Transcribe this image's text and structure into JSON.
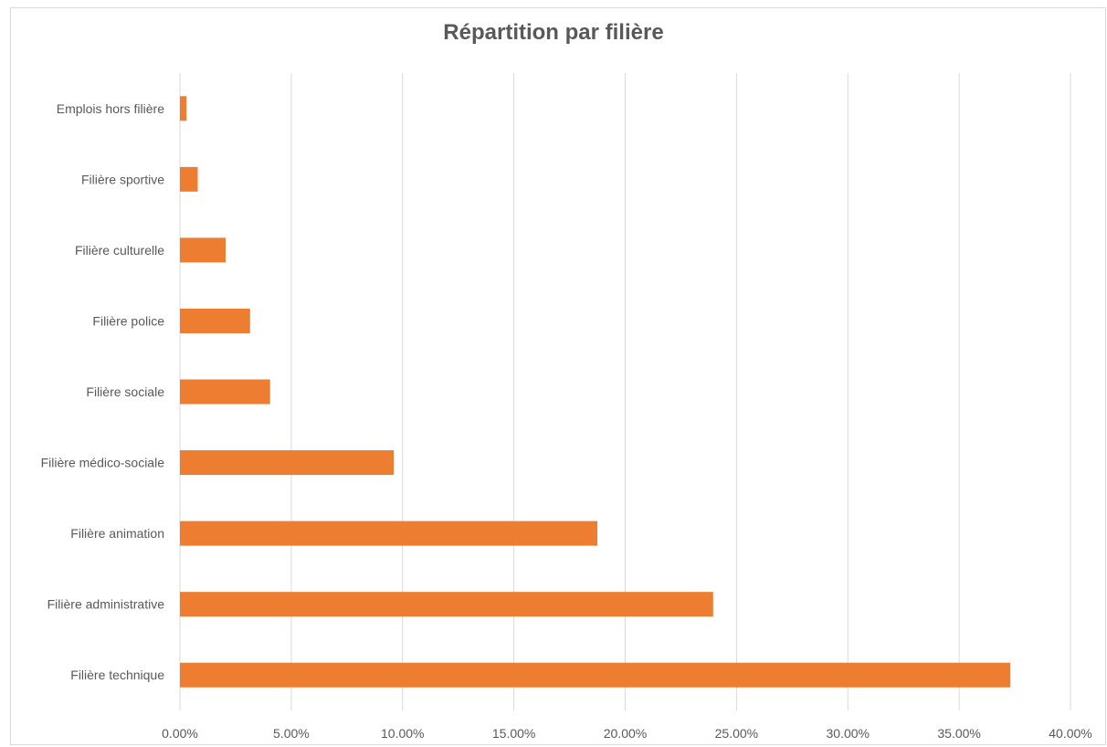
{
  "chart_data": {
    "type": "bar",
    "orientation": "horizontal",
    "title": "Répartition par filière",
    "categories": [
      "Emplois hors filière",
      "Filière sportive",
      "Filière culturelle",
      "Filière police",
      "Filière sociale",
      "Filière médico-sociale",
      "Filière animation",
      "Filière administrative",
      "Filière technique"
    ],
    "values": [
      0.3,
      0.8,
      2.05,
      3.15,
      4.05,
      9.6,
      18.75,
      23.95,
      37.3
    ],
    "xlabel": "",
    "ylabel": "",
    "xlim": [
      0,
      40
    ],
    "xticks": [
      "0.00%",
      "5.00%",
      "10.00%",
      "15.00%",
      "20.00%",
      "25.00%",
      "30.00%",
      "35.00%",
      "40.00%"
    ],
    "grid": "vertical",
    "legend": "none",
    "bar_color": "#ed7d31",
    "grid_color": "#d9d9d9"
  }
}
